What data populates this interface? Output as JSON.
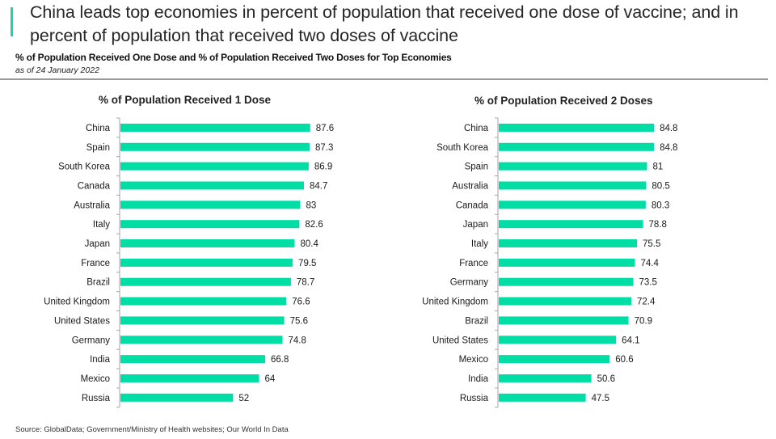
{
  "header": {
    "headline": "China leads top economies in percent of population that received one dose of vaccine; and in percent of population that received two doses of vaccine",
    "subtitle": "% of Population Received One Dose and % of Population Received Two Doses for Top Economies",
    "as_of": "as of 24 January 2022"
  },
  "colors": {
    "bar": "#00dea5",
    "accent": "#1fd6a0",
    "divider": "#9a9a9e"
  },
  "footer": {
    "source": "Source: GlobalData; Government/Ministry of Health websites; Our World In Data"
  },
  "chart_data": [
    {
      "type": "bar",
      "orientation": "horizontal",
      "title": "% of Population Received 1 Dose",
      "xlabel": "",
      "ylabel": "",
      "xlim": [
        0,
        100
      ],
      "grid": false,
      "legend": "none",
      "categories": [
        "China",
        "Spain",
        "South Korea",
        "Canada",
        "Australia",
        "Italy",
        "Japan",
        "France",
        "Brazil",
        "United Kingdom",
        "United States",
        "Germany",
        "India",
        "Mexico",
        "Russia"
      ],
      "values": [
        87.6,
        87.3,
        86.9,
        84.7,
        83,
        82.6,
        80.4,
        79.5,
        78.7,
        76.6,
        75.6,
        74.8,
        66.8,
        64,
        52
      ],
      "labels": [
        "87.6",
        "87.3",
        "86.9",
        "84.7",
        "83",
        "82.6",
        "80.4",
        "79.5",
        "78.7",
        "76.6",
        "75.6",
        "74.8",
        "66.8",
        "64",
        "52"
      ]
    },
    {
      "type": "bar",
      "orientation": "horizontal",
      "title": "% of Population Received 2 Doses",
      "xlabel": "",
      "ylabel": "",
      "xlim": [
        0,
        100
      ],
      "grid": false,
      "legend": "none",
      "categories": [
        "China",
        "South Korea",
        "Spain",
        "Australia",
        "Canada",
        "Japan",
        "Italy",
        "France",
        "Germany",
        "United Kingdom",
        "Brazil",
        "United States",
        "Mexico",
        "India",
        "Russia"
      ],
      "values": [
        84.8,
        84.8,
        81,
        80.5,
        80.3,
        78.8,
        75.5,
        74.4,
        73.5,
        72.4,
        70.9,
        64.1,
        60.6,
        50.6,
        47.5
      ],
      "labels": [
        "84.8",
        "84.8",
        "81",
        "80.5",
        "80.3",
        "78.8",
        "75.5",
        "74.4",
        "73.5",
        "72.4",
        "70.9",
        "64.1",
        "60.6",
        "50.6",
        "47.5"
      ]
    }
  ]
}
